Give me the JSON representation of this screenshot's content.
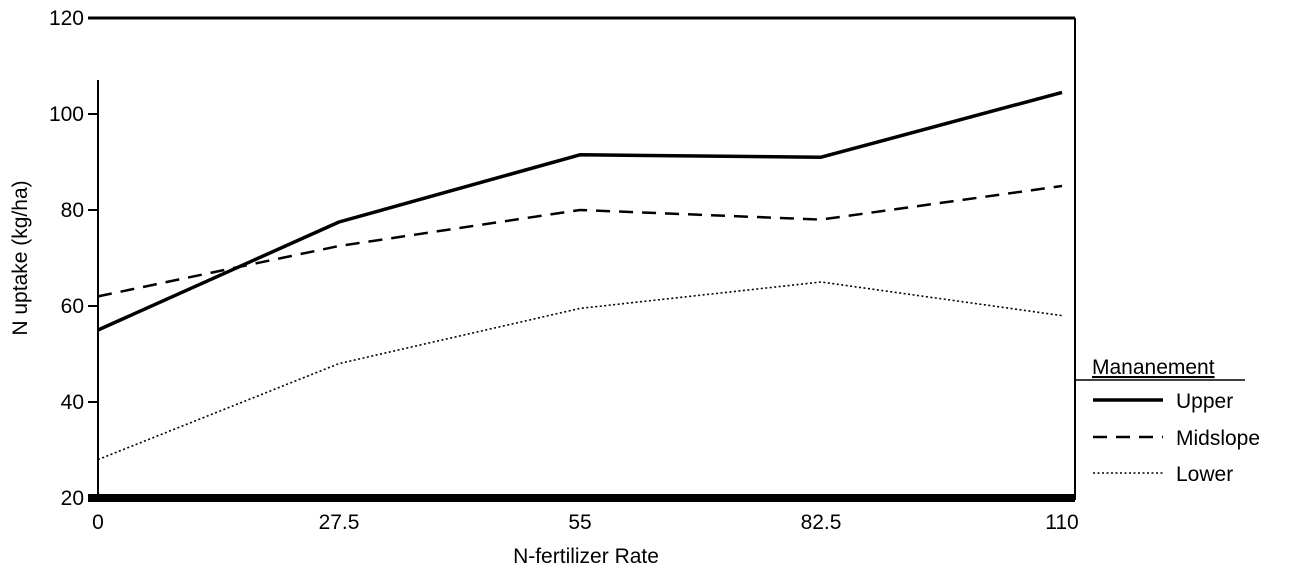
{
  "chart_data": {
    "type": "line",
    "xlabel": "N-fertilizer  Rate",
    "ylabel": "N uptake (kg/ha)",
    "x": [
      0,
      27.5,
      55,
      82.5,
      110
    ],
    "x_tick_labels": [
      "0",
      "27.5",
      "55",
      "82.5",
      "110"
    ],
    "xlim": [
      0,
      110
    ],
    "ylim": [
      20,
      120
    ],
    "y_ticks": [
      20,
      40,
      60,
      80,
      100,
      120
    ],
    "y_tick_labels": [
      "20",
      "40",
      "60",
      "80",
      "100",
      "120"
    ],
    "grid": false,
    "legend": {
      "title": "Mananement",
      "placement": "right"
    },
    "series": [
      {
        "name": "Upper",
        "values": [
          55,
          77.5,
          91.5,
          91,
          104.5
        ],
        "style": "solid",
        "color": "#000000"
      },
      {
        "name": "Midslope",
        "values": [
          62,
          72.5,
          80,
          78,
          85
        ],
        "style": "dashed",
        "color": "#000000"
      },
      {
        "name": "Lower",
        "values": [
          28,
          48,
          59.5,
          65,
          58
        ],
        "style": "dotted",
        "color": "#000000"
      }
    ]
  }
}
